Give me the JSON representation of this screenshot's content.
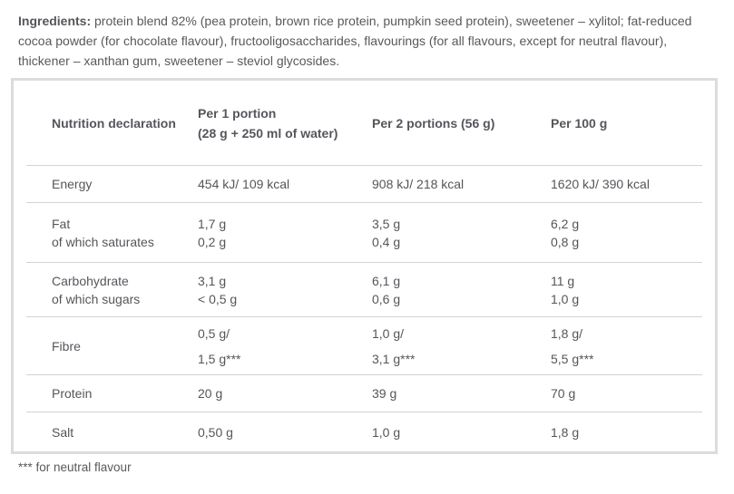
{
  "ingredients": {
    "label": "Ingredients:",
    "text": "protein blend 82% (pea protein, brown rice protein, pumpkin seed protein), sweetener – xylitol; fat-reduced cocoa powder (for chocolate flavour), fructooligosaccharides, flavourings (for all flavours, except for neutral flavour), thickener – xanthan gum, sweetener – steviol glycosides."
  },
  "nutrition_table": {
    "headers": [
      {
        "name": "nutrition-declaration",
        "lines": [
          "Nutrition declaration"
        ]
      },
      {
        "name": "per-1-portion",
        "lines": [
          "Per 1 portion",
          "(28 g + 250 ml of water)"
        ]
      },
      {
        "name": "per-2-portions",
        "lines": [
          "Per 2 portions (56 g)"
        ]
      },
      {
        "name": "per-100-g",
        "lines": [
          "Per 100 g"
        ]
      }
    ],
    "rows": [
      {
        "name": "energy",
        "label": [
          "Energy"
        ],
        "per1": [
          "454 kJ/ 109 kcal"
        ],
        "per2": [
          "908 kJ/ 218 kcal"
        ],
        "per100": [
          "1620 kJ/ 390 kcal"
        ],
        "tall": false
      },
      {
        "name": "fat",
        "label": [
          "Fat",
          "of which saturates"
        ],
        "per1": [
          "1,7 g",
          "0,2 g"
        ],
        "per2": [
          "3,5 g",
          "0,4 g"
        ],
        "per100": [
          "6,2 g",
          "0,8 g"
        ],
        "tall": false
      },
      {
        "name": "carbohydrate",
        "label": [
          "Carbohydrate",
          "of which sugars"
        ],
        "per1": [
          "3,1 g",
          "< 0,5 g"
        ],
        "per2": [
          "6,1 g",
          "0,6 g"
        ],
        "per100": [
          "11 g",
          "1,0 g"
        ],
        "tall": false
      },
      {
        "name": "fibre",
        "label": [
          "Fibre"
        ],
        "per1": [
          "0,5 g/",
          "1,5 g***"
        ],
        "per2": [
          "1,0 g/",
          "3,1 g***"
        ],
        "per100": [
          "1,8 g/",
          "5,5 g***"
        ],
        "tall": true
      },
      {
        "name": "protein",
        "label": [
          "Protein"
        ],
        "per1": [
          "20 g"
        ],
        "per2": [
          "39 g"
        ],
        "per100": [
          "70 g"
        ],
        "tall": false
      },
      {
        "name": "salt",
        "label": [
          "Salt"
        ],
        "per1": [
          "0,50 g"
        ],
        "per2": [
          "1,0 g"
        ],
        "per100": [
          "1,8 g"
        ],
        "tall": false
      }
    ]
  },
  "footnote": "*** for neutral flavour",
  "colors": {
    "text": "#55565b",
    "card_border": "#dcdcdc",
    "row_separator": "#d3d3d3",
    "background": "#ffffff"
  }
}
